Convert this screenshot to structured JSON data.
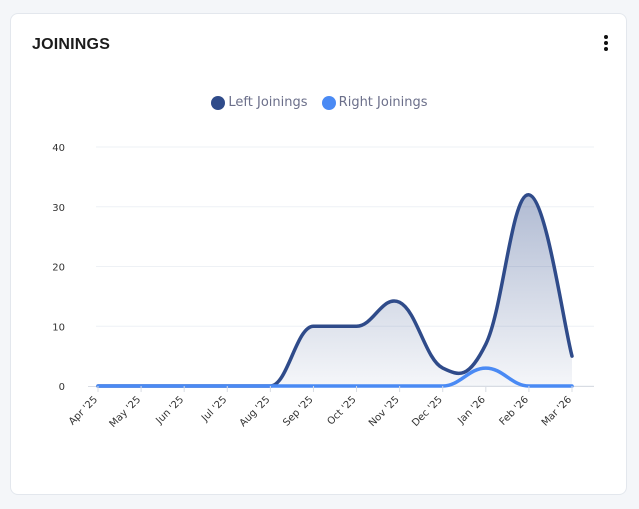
{
  "card": {
    "title": "JOININGS"
  },
  "legend": [
    {
      "label": "Left Joinings",
      "color": "#2f4b8a"
    },
    {
      "label": "Right Joinings",
      "color": "#4a8af4"
    }
  ],
  "chart_data": {
    "type": "area",
    "categories": [
      "Apr '25",
      "May '25",
      "Jun '25",
      "Jul '25",
      "Aug '25",
      "Sep '25",
      "Oct '25",
      "Nov '25",
      "Dec '25",
      "Jan '26",
      "Feb '26",
      "Mar '26"
    ],
    "series": [
      {
        "name": "Left Joinings",
        "color": "#2f4b8a",
        "values": [
          0,
          0,
          0,
          0,
          0,
          10,
          10,
          14,
          3,
          7,
          32,
          5
        ]
      },
      {
        "name": "Right Joinings",
        "color": "#4a8af4",
        "values": [
          0,
          0,
          0,
          0,
          0,
          0,
          0,
          0,
          0,
          3,
          0,
          0
        ]
      }
    ],
    "yticks": [
      "0",
      "10",
      "20",
      "30",
      "40"
    ],
    "ylim": [
      0,
      40
    ],
    "grid": true,
    "legend_position": "top"
  }
}
